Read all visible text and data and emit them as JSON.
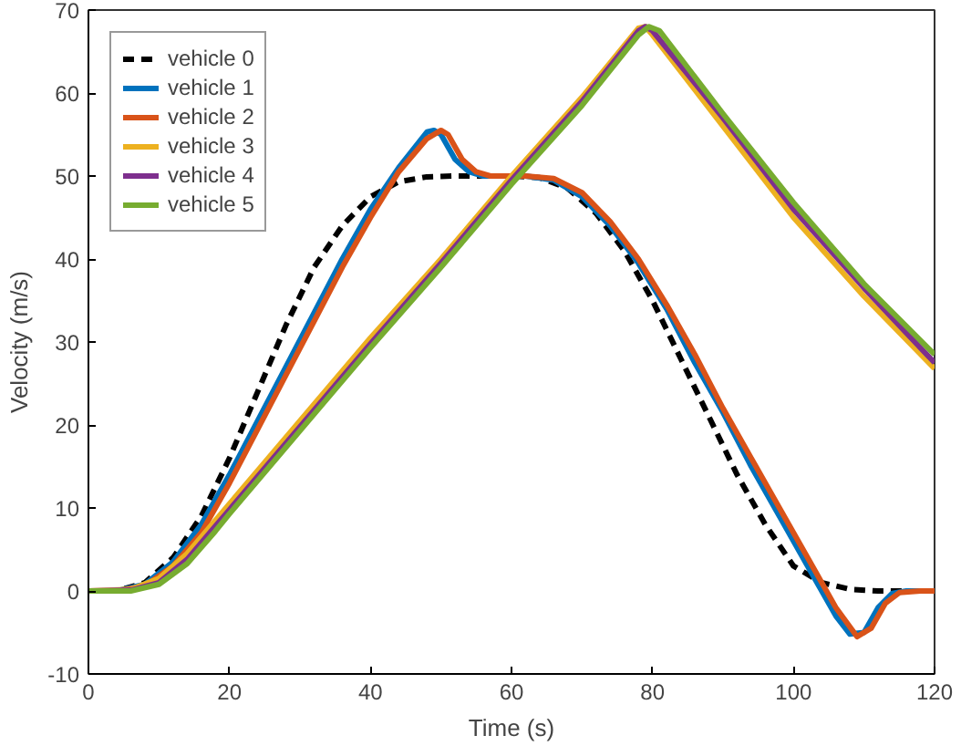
{
  "chart_data": {
    "type": "line",
    "xlabel": "Time (s)",
    "ylabel": "Velocity (m/s)",
    "xlim": [
      0,
      120
    ],
    "ylim": [
      -10,
      70
    ],
    "xticks": [
      0,
      20,
      40,
      60,
      80,
      100,
      120
    ],
    "yticks": [
      -10,
      0,
      10,
      20,
      30,
      40,
      50,
      60,
      70
    ],
    "grid": false,
    "legend": "top left",
    "marker": "none",
    "series": [
      {
        "name": "vehicle 0",
        "color": "#000000",
        "line_style": "dashed",
        "x": [
          0,
          4,
          8,
          12,
          16,
          20,
          24,
          28,
          32,
          36,
          40,
          44,
          48,
          52,
          60,
          64,
          68,
          72,
          76,
          80,
          84,
          88,
          92,
          96,
          100,
          104,
          108,
          112,
          120
        ],
        "values": [
          0,
          0,
          1,
          4,
          9,
          16,
          24,
          32,
          39,
          44,
          47.5,
          49.3,
          49.9,
          50,
          50,
          49.8,
          48.5,
          45.5,
          41,
          35,
          28,
          21,
          14,
          8,
          3,
          1,
          0.2,
          0,
          0
        ]
      },
      {
        "name": "vehicle 1",
        "color": "#0072bd",
        "line_style": "solid",
        "x": [
          0,
          4,
          8,
          12,
          16,
          20,
          24,
          28,
          32,
          36,
          40,
          44,
          48,
          49,
          50,
          52,
          54,
          56,
          62,
          66,
          70,
          74,
          78,
          82,
          86,
          90,
          94,
          98,
          102,
          106,
          108,
          110,
          112,
          114,
          116,
          120
        ],
        "values": [
          0,
          0,
          0.8,
          3.5,
          8,
          14,
          20.5,
          27,
          33.5,
          40,
          46,
          51,
          55.3,
          55.5,
          55,
          52,
          50.5,
          50,
          50,
          49.5,
          47.5,
          44,
          39.5,
          34,
          27.5,
          21.5,
          15,
          9,
          3,
          -3,
          -5.2,
          -5,
          -2,
          -0.3,
          0,
          0
        ]
      },
      {
        "name": "vehicle 2",
        "color": "#d95319",
        "line_style": "solid",
        "x": [
          0,
          4,
          8,
          12,
          16,
          20,
          24,
          28,
          32,
          36,
          40,
          44,
          48,
          50,
          51,
          53,
          55,
          57,
          62,
          66,
          70,
          74,
          78,
          82,
          86,
          90,
          94,
          98,
          102,
          106,
          109,
          111,
          113,
          115,
          118,
          120
        ],
        "values": [
          0,
          0,
          0.6,
          3,
          7,
          13,
          19.5,
          26,
          32.5,
          39,
          45,
          50.5,
          54.5,
          55.5,
          55,
          52,
          50.5,
          50,
          50,
          49.7,
          48,
          44.5,
          40,
          34.5,
          28.5,
          22,
          16,
          10,
          4,
          -2,
          -5.5,
          -4.5,
          -1.5,
          -0.2,
          0,
          0
        ]
      },
      {
        "name": "vehicle 3",
        "color": "#edb120",
        "line_style": "solid",
        "x": [
          0,
          6,
          10,
          14,
          18,
          20,
          30,
          40,
          50,
          60,
          70,
          78,
          79,
          80,
          90,
          100,
          110,
          120
        ],
        "values": [
          0,
          0.2,
          1.5,
          4.5,
          8.5,
          10.5,
          20.5,
          30.5,
          40,
          50,
          59.5,
          67.8,
          68,
          67,
          56,
          45,
          35.5,
          26.8
        ]
      },
      {
        "name": "vehicle 4",
        "color": "#7e2f8e",
        "line_style": "solid",
        "x": [
          0,
          6,
          10,
          14,
          18,
          20,
          30,
          40,
          50,
          60,
          70,
          78,
          79,
          80,
          90,
          100,
          110,
          120
        ],
        "values": [
          0,
          0.1,
          1,
          3.8,
          7.8,
          9.8,
          19.8,
          29.8,
          39.5,
          49.5,
          59,
          67.5,
          68,
          67.5,
          57,
          46,
          36.5,
          27.5
        ]
      },
      {
        "name": "vehicle 5",
        "color": "#77ac30",
        "line_style": "solid",
        "x": [
          0,
          6,
          10,
          14,
          18,
          20,
          30,
          40,
          50,
          60,
          70,
          78,
          79.5,
          81,
          90,
          100,
          110,
          120
        ],
        "values": [
          0,
          0,
          0.8,
          3.3,
          7.2,
          9.3,
          19.3,
          29.3,
          39,
          49,
          58.5,
          67,
          68,
          67.5,
          57.5,
          46.8,
          37,
          28.5
        ]
      }
    ]
  }
}
